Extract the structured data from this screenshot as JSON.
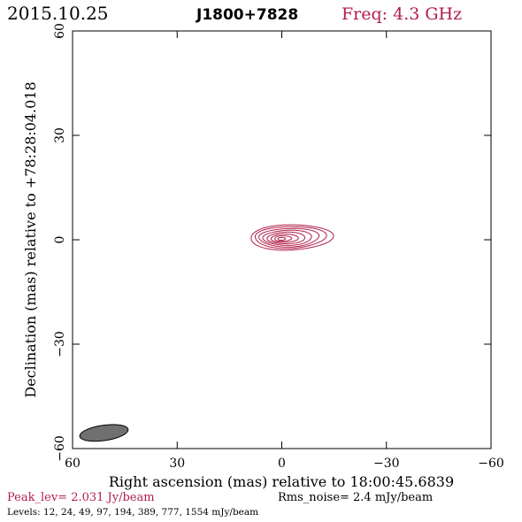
{
  "header": {
    "date": "2015.10.25",
    "source": "J1800+7828",
    "freq": "Freq: 4.3 GHz"
  },
  "colors": {
    "contour": "#b01e4a",
    "accent_text": "#b01e4a",
    "beam_fill": "#707070",
    "frame": "#000000"
  },
  "footer": {
    "peak": "Peak_lev=  2.031 Jy/beam",
    "rms": "Rms_noise=  2.4 mJy/beam",
    "levels": "Levels:  12,  24,  49,  97, 194, 389, 777, 1554 mJy/beam"
  },
  "chart_data": {
    "type": "contour",
    "xlabel": "Right ascension (mas) relative to 18:00:45.6839",
    "ylabel": "Declination (mas) relative to +78:28:04.018",
    "xlim": [
      60,
      -60
    ],
    "ylim": [
      -60,
      60
    ],
    "xticks": [
      60,
      30,
      0,
      -30,
      -60
    ],
    "yticks": [
      60,
      30,
      0,
      -30,
      -60
    ],
    "xtick_labels": [
      "60",
      "30",
      "0",
      "−30",
      "−60"
    ],
    "ytick_labels": [
      "60",
      "30",
      "0",
      "−30",
      "−60"
    ],
    "contour_levels_mJy": [
      12,
      24,
      49,
      97,
      194,
      389,
      777,
      1554
    ],
    "contour_center": [
      -2,
      1
    ],
    "contour_ellipses": [
      {
        "level": 12,
        "rx": 11.8,
        "ry": 3.7,
        "cx": -2.0,
        "cy": 0.9
      },
      {
        "level": 24,
        "rx": 10.2,
        "ry": 3.2,
        "cx": -1.8,
        "cy": 0.9
      },
      {
        "level": 49,
        "rx": 8.6,
        "ry": 2.7,
        "cx": -1.6,
        "cy": 0.8
      },
      {
        "level": 97,
        "rx": 7.0,
        "ry": 2.2,
        "cx": -1.3,
        "cy": 0.7
      },
      {
        "level": 194,
        "rx": 5.4,
        "ry": 1.7,
        "cx": -1.0,
        "cy": 0.6
      },
      {
        "level": 389,
        "rx": 3.9,
        "ry": 1.2,
        "cx": -0.6,
        "cy": 0.5
      },
      {
        "level": 777,
        "rx": 2.4,
        "ry": 0.8,
        "cx": -0.2,
        "cy": 0.4
      },
      {
        "level": 1554,
        "rx": 1.1,
        "ry": 0.4,
        "cx": 0.1,
        "cy": 0.3
      }
    ],
    "beam": {
      "x": 51,
      "y": -55.5,
      "major": 7.0,
      "minor": 2.2
    }
  }
}
